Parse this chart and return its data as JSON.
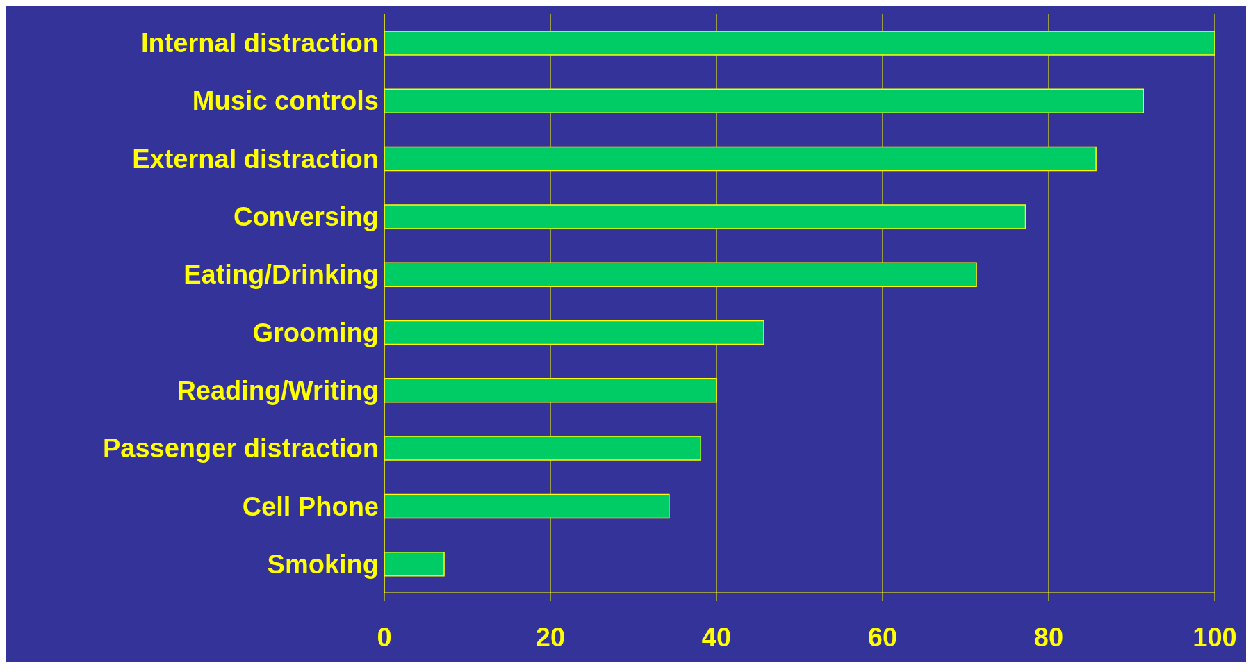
{
  "chart_data": {
    "type": "bar",
    "orientation": "horizontal",
    "categories": [
      "Internal distraction",
      "Music controls",
      "External distraction",
      "Conversing",
      "Eating/Drinking",
      "Grooming",
      "Reading/Writing",
      "Passenger distraction",
      "Cell Phone",
      "Smoking"
    ],
    "values": [
      100,
      91.4,
      85.7,
      77.2,
      71.3,
      45.7,
      40,
      38.1,
      34.3,
      7.2
    ],
    "color": "#00cc66",
    "xlim": [
      0,
      100
    ],
    "xticks": [
      0,
      20,
      40,
      60,
      80,
      100
    ],
    "grid": "x"
  }
}
